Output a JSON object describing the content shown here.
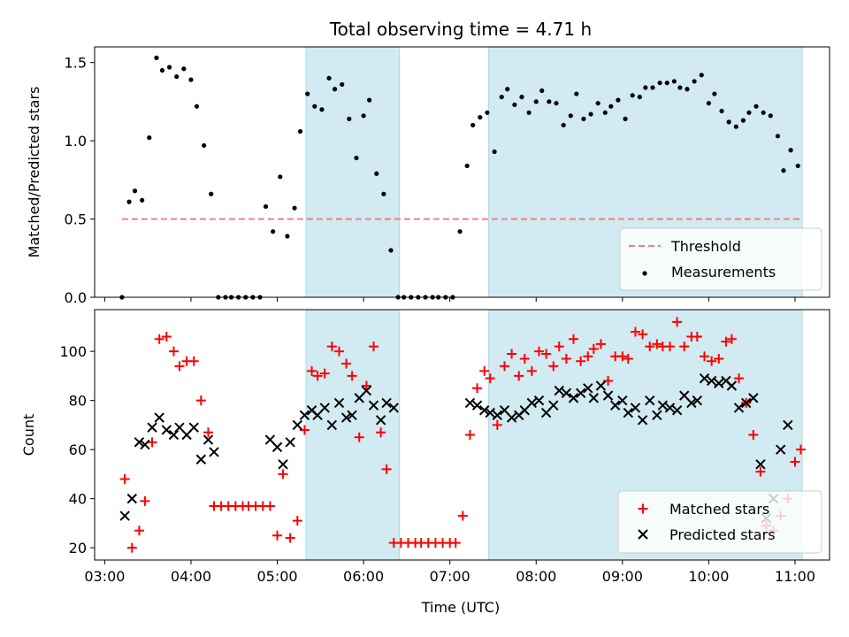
{
  "figure": {
    "title": "Total observing time = 4.71 h",
    "xlabel": "Time (UTC)"
  },
  "colors": {
    "shade": "#add8e6",
    "threshold": "#f08080",
    "measurement": "#000000",
    "matched": "#ff0000",
    "predicted": "#000000"
  },
  "chart_data": [
    {
      "type": "scatter",
      "ylabel": "Matched/Predicted stars",
      "ylim": [
        0,
        1.6
      ],
      "yticks": [
        0.0,
        0.5,
        1.0,
        1.5
      ],
      "ytick_labels": [
        "0.0",
        "0.5",
        "1.0",
        "1.5"
      ],
      "xlim": [
        "02:53",
        "11:24"
      ],
      "shaded_intervals": [
        [
          "05:20",
          "06:25"
        ],
        [
          "07:27",
          "11:05"
        ]
      ],
      "series": [
        {
          "name": "Threshold",
          "style": "dashed-line",
          "x": [
            "03:12",
            "11:04"
          ],
          "y": [
            0.5,
            0.5
          ]
        },
        {
          "name": "Measurements",
          "style": "dot",
          "x": [
            "03:12",
            "03:17",
            "03:21",
            "03:26",
            "03:31",
            "03:36",
            "03:40",
            "03:45",
            "03:50",
            "03:55",
            "04:00",
            "04:04",
            "04:09",
            "04:14",
            "04:19",
            "04:24",
            "04:28",
            "04:33",
            "04:38",
            "04:43",
            "04:48",
            "04:52",
            "04:57",
            "05:02",
            "05:07",
            "05:12",
            "05:16",
            "05:21",
            "05:26",
            "05:31",
            "05:36",
            "05:40",
            "05:45",
            "05:50",
            "05:55",
            "06:00",
            "06:04",
            "06:09",
            "06:14",
            "06:19",
            "06:24",
            "06:28",
            "06:33",
            "06:38",
            "06:43",
            "06:48",
            "06:52",
            "06:57",
            "07:02",
            "07:07",
            "07:12",
            "07:16",
            "07:21",
            "07:26",
            "07:31",
            "07:36",
            "07:40",
            "07:45",
            "07:50",
            "07:55",
            "08:00",
            "08:04",
            "08:09",
            "08:14",
            "08:19",
            "08:24",
            "08:28",
            "08:33",
            "08:38",
            "08:43",
            "08:48",
            "08:52",
            "08:57",
            "09:02",
            "09:07",
            "09:12",
            "09:16",
            "09:21",
            "09:26",
            "09:31",
            "09:36",
            "09:40",
            "09:45",
            "09:50",
            "09:55",
            "10:00",
            "10:04",
            "10:09",
            "10:14",
            "10:19",
            "10:24",
            "10:28",
            "10:33",
            "10:38",
            "10:43",
            "10:48",
            "10:52",
            "10:57",
            "11:02"
          ],
          "y": [
            0.0,
            0.61,
            0.68,
            0.62,
            1.02,
            1.53,
            1.45,
            1.47,
            1.41,
            1.46,
            1.39,
            1.22,
            0.97,
            0.66,
            0.0,
            0.0,
            0.0,
            0.0,
            0.0,
            0.0,
            0.0,
            0.58,
            0.42,
            0.77,
            0.39,
            0.57,
            1.06,
            1.3,
            1.22,
            1.2,
            1.4,
            1.33,
            1.36,
            1.14,
            0.89,
            1.16,
            1.26,
            0.79,
            0.66,
            0.3,
            0.0,
            0.0,
            0.0,
            0.0,
            0.0,
            0.0,
            0.0,
            0.0,
            0.0,
            0.42,
            0.84,
            1.1,
            1.15,
            1.18,
            0.93,
            1.28,
            1.33,
            1.23,
            1.28,
            1.18,
            1.25,
            1.32,
            1.25,
            1.24,
            1.1,
            1.16,
            1.3,
            1.14,
            1.17,
            1.24,
            1.18,
            1.22,
            1.26,
            1.14,
            1.29,
            1.28,
            1.34,
            1.34,
            1.37,
            1.37,
            1.38,
            1.34,
            1.33,
            1.38,
            1.42,
            1.24,
            1.3,
            1.19,
            1.12,
            1.09,
            1.13,
            1.18,
            1.22,
            1.18,
            1.16,
            1.03,
            0.81,
            0.94,
            0.84
          ]
        }
      ],
      "legend": [
        "Threshold",
        "Measurements"
      ],
      "legend_position": "lower-right"
    },
    {
      "type": "scatter",
      "ylabel": "Count",
      "ylim": [
        15,
        117
      ],
      "yticks": [
        20,
        40,
        60,
        80,
        100
      ],
      "ytick_labels": [
        "20",
        "40",
        "60",
        "80",
        "100"
      ],
      "xticks": [
        "03:00",
        "04:00",
        "05:00",
        "06:00",
        "07:00",
        "08:00",
        "09:00",
        "10:00",
        "11:00"
      ],
      "xlim": [
        "02:53",
        "11:24"
      ],
      "shaded_intervals": [
        [
          "05:20",
          "06:25"
        ],
        [
          "07:27",
          "11:05"
        ]
      ],
      "series": [
        {
          "name": "Matched stars",
          "style": "plus",
          "x": [
            "03:14",
            "03:19",
            "03:24",
            "03:28",
            "03:33",
            "03:38",
            "03:43",
            "03:48",
            "03:52",
            "03:57",
            "04:02",
            "04:07",
            "04:12",
            "04:16",
            "04:21",
            "04:26",
            "04:31",
            "04:36",
            "04:40",
            "04:45",
            "04:50",
            "04:55",
            "05:00",
            "05:04",
            "05:09",
            "05:14",
            "05:19",
            "05:24",
            "05:28",
            "05:33",
            "05:38",
            "05:43",
            "05:48",
            "05:52",
            "05:57",
            "06:02",
            "06:07",
            "06:12",
            "06:16",
            "06:21",
            "06:26",
            "06:31",
            "06:36",
            "06:40",
            "06:45",
            "06:50",
            "06:55",
            "07:00",
            "07:04",
            "07:09",
            "07:14",
            "07:19",
            "07:24",
            "07:28",
            "07:33",
            "07:38",
            "07:43",
            "07:48",
            "07:52",
            "07:57",
            "08:02",
            "08:07",
            "08:12",
            "08:16",
            "08:21",
            "08:26",
            "08:31",
            "08:36",
            "08:40",
            "08:45",
            "08:50",
            "08:55",
            "09:00",
            "09:04",
            "09:09",
            "09:14",
            "09:19",
            "09:24",
            "09:28",
            "09:33",
            "09:38",
            "09:43",
            "09:48",
            "09:52",
            "09:57",
            "10:02",
            "10:07",
            "10:12",
            "10:16",
            "10:21",
            "10:26",
            "10:31",
            "10:36",
            "10:40",
            "10:45",
            "10:50",
            "10:55",
            "11:00",
            "11:04"
          ],
          "y": [
            48,
            20,
            27,
            39,
            63,
            105,
            106,
            100,
            94,
            96,
            96,
            80,
            67,
            37,
            37,
            37,
            37,
            37,
            37,
            37,
            37,
            37,
            25,
            50,
            24,
            31,
            68,
            92,
            90,
            91,
            102,
            100,
            95,
            90,
            65,
            86,
            102,
            67,
            52,
            22,
            22,
            22,
            22,
            22,
            22,
            22,
            22,
            22,
            22,
            33,
            66,
            85,
            92,
            89,
            70,
            94,
            99,
            90,
            97,
            92,
            100,
            99,
            94,
            102,
            97,
            105,
            96,
            98,
            101,
            103,
            88,
            98,
            98,
            97,
            108,
            107,
            102,
            103,
            102,
            102,
            112,
            102,
            106,
            106,
            98,
            96,
            97,
            104,
            105,
            89,
            79,
            66,
            51,
            29,
            27,
            33,
            40,
            55,
            60
          ]
        },
        {
          "name": "Predicted stars",
          "style": "x",
          "x": [
            "03:14",
            "03:19",
            "03:24",
            "03:28",
            "03:33",
            "03:38",
            "03:43",
            "03:48",
            "03:52",
            "03:57",
            "04:02",
            "04:07",
            "04:12",
            "04:16",
            "04:55",
            "05:00",
            "05:04",
            "05:09",
            "05:14",
            "05:19",
            "05:24",
            "05:28",
            "05:33",
            "05:38",
            "05:43",
            "05:48",
            "05:52",
            "05:57",
            "06:02",
            "06:07",
            "06:12",
            "06:16",
            "06:21",
            "07:14",
            "07:19",
            "07:24",
            "07:28",
            "07:33",
            "07:38",
            "07:43",
            "07:48",
            "07:52",
            "07:57",
            "08:02",
            "08:07",
            "08:12",
            "08:16",
            "08:21",
            "08:26",
            "08:31",
            "08:36",
            "08:40",
            "08:45",
            "08:50",
            "08:55",
            "09:00",
            "09:04",
            "09:09",
            "09:14",
            "09:19",
            "09:24",
            "09:28",
            "09:33",
            "09:38",
            "09:43",
            "09:48",
            "09:52",
            "09:57",
            "10:02",
            "10:07",
            "10:12",
            "10:16",
            "10:21",
            "10:26",
            "10:31",
            "10:36",
            "10:40",
            "10:45",
            "10:50",
            "10:55"
          ],
          "y": [
            33,
            40,
            63,
            62,
            69,
            73,
            68,
            66,
            69,
            66,
            69,
            56,
            64,
            59,
            64,
            61,
            54,
            63,
            70,
            74,
            76,
            74,
            77,
            70,
            79,
            73,
            74,
            81,
            84,
            78,
            72,
            79,
            77,
            79,
            78,
            76,
            75,
            74,
            76,
            73,
            74,
            76,
            79,
            80,
            75,
            78,
            84,
            83,
            81,
            83,
            85,
            81,
            86,
            82,
            78,
            80,
            75,
            77,
            72,
            80,
            74,
            78,
            77,
            76,
            82,
            79,
            80,
            89,
            88,
            87,
            88,
            86,
            77,
            79,
            81,
            54,
            32,
            40,
            60,
            70
          ]
        }
      ],
      "legend": [
        "Matched stars",
        "Predicted stars"
      ],
      "legend_position": "lower-right"
    }
  ]
}
